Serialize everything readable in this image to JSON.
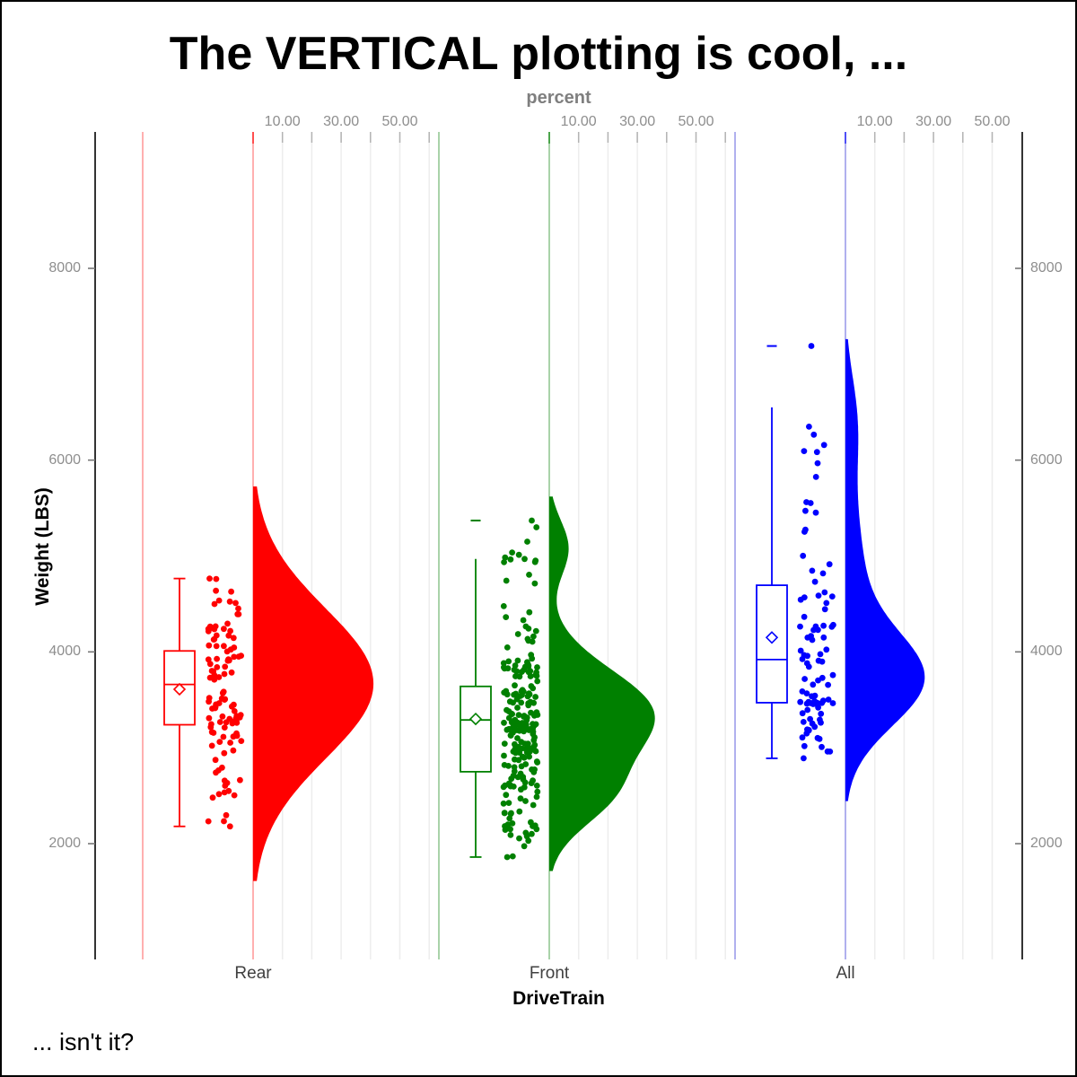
{
  "title": "The VERTICAL plotting is cool, ...",
  "caption": "... isn't it?",
  "border_color": "#000000",
  "chart_data": {
    "type": "raincloud (half-violin + box plot + jitter strip, vertical)",
    "top_axis": {
      "label": "percent",
      "tick_labels": [
        "10.00",
        "30.00",
        "50.00"
      ],
      "tick_values": [
        10,
        30,
        50
      ],
      "gridline_percents": [
        10,
        20,
        30,
        40,
        50,
        60
      ],
      "gridline_color": "#ededed",
      "tick_color": "#b3b3b3",
      "label_color": "#7f7f7f"
    },
    "x_axis": {
      "label": "DriveTrain",
      "categories": [
        "Rear",
        "Front",
        "All"
      ]
    },
    "y_axis": {
      "label": "Weight (LBS)",
      "ticks": [
        2000,
        4000,
        6000,
        8000
      ],
      "range": [
        900,
        9400
      ],
      "axis_line_color": "#000000",
      "tick_label_color": "#8e8e8e"
    },
    "groups": [
      {
        "name": "Rear",
        "color": "#ff0000",
        "pale_color": "#ffb0b0",
        "n_points": 110,
        "box": {
          "whisker_low": 2180,
          "q1": 3240,
          "median": 3660,
          "mean": 3610,
          "q3": 4010,
          "whisker_high": 4765,
          "outliers": [],
          "cap_top": true,
          "cap_bottom": true
        },
        "violin": {
          "max_halfwidth_percent": 41,
          "mixture": [
            {
              "w": 1.0,
              "mean": 3670,
              "sd": 780
            }
          ]
        },
        "strip": {
          "seed": 42,
          "clip": [
            2180,
            4765
          ],
          "forced_points": [
            2180,
            4765
          ]
        }
      },
      {
        "name": "Front",
        "color": "#008000",
        "pale_color": "#a9d3a9",
        "n_points": 226,
        "box": {
          "whisker_low": 1860,
          "q1": 2750,
          "median": 3290,
          "mean": 3300,
          "q3": 3640,
          "whisker_high": 4970,
          "outliers": [
            5370
          ],
          "cap_top": false,
          "cap_bottom": true
        },
        "violin": {
          "max_halfwidth_percent": 36,
          "mixture": [
            {
              "w": 0.7,
              "mean": 3340,
              "sd": 470
            },
            {
              "w": 0.22,
              "mean": 2480,
              "sd": 330
            },
            {
              "w": 0.08,
              "mean": 5080,
              "sd": 290
            }
          ]
        },
        "strip": {
          "seed": 77,
          "clip": [
            1860,
            5050
          ],
          "forced_points": [
            1860,
            5150,
            5300,
            5370
          ]
        }
      },
      {
        "name": "All",
        "color": "#0000ff",
        "pale_color": "#b0b0ee",
        "n_points": 92,
        "box": {
          "whisker_low": 2890,
          "q1": 3470,
          "median": 3920,
          "mean": 4150,
          "q3": 4695,
          "whisker_high": 6550,
          "outliers": [
            7190
          ],
          "cap_top": false,
          "cap_bottom": true
        },
        "violin": {
          "max_halfwidth_percent": 27,
          "mixture": [
            {
              "w": 0.66,
              "mean": 3700,
              "sd": 480
            },
            {
              "w": 0.24,
              "mean": 4800,
              "sd": 750
            },
            {
              "w": 0.1,
              "mean": 6400,
              "sd": 500
            }
          ]
        },
        "strip": {
          "seed": 101,
          "clip": [
            2890,
            6500
          ],
          "forced_points": [
            2890,
            7190
          ]
        }
      }
    ]
  }
}
